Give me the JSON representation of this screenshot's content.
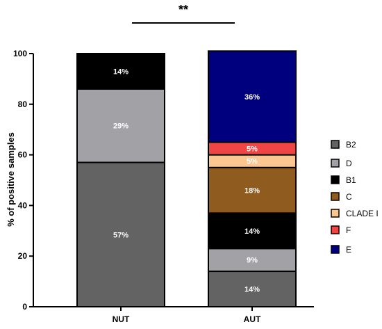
{
  "chart_data": {
    "type": "bar",
    "stacked": true,
    "categories": [
      "NUT",
      "AUT"
    ],
    "ylabel": "% of positive samples",
    "xlabel": "",
    "ylim": [
      0,
      100
    ],
    "yticks": [
      0,
      20,
      40,
      60,
      80,
      100
    ],
    "significance": "**",
    "legend_position": "right",
    "series": [
      {
        "name": "B2",
        "color": "#636363",
        "values": [
          57,
          14
        ],
        "labels": [
          "57%",
          "14%"
        ]
      },
      {
        "name": "D",
        "color": "#a2a1a6",
        "values": [
          29,
          9
        ],
        "labels": [
          "29%",
          "9%"
        ]
      },
      {
        "name": "B1",
        "color": "#000000",
        "values": [
          14,
          14
        ],
        "labels": [
          "14%",
          "14%"
        ]
      },
      {
        "name": "C",
        "color": "#8f5b1f",
        "values": [
          0,
          18
        ],
        "labels": [
          "",
          "18%"
        ]
      },
      {
        "name": "CLADE I",
        "color": "#fbc68f",
        "values": [
          0,
          5
        ],
        "labels": [
          "",
          "5%"
        ]
      },
      {
        "name": "F",
        "color": "#f04545",
        "values": [
          0,
          5
        ],
        "labels": [
          "",
          "5%"
        ]
      },
      {
        "name": "E",
        "color": "#00007f",
        "values": [
          0,
          36
        ],
        "labels": [
          "",
          "36%"
        ]
      }
    ]
  }
}
